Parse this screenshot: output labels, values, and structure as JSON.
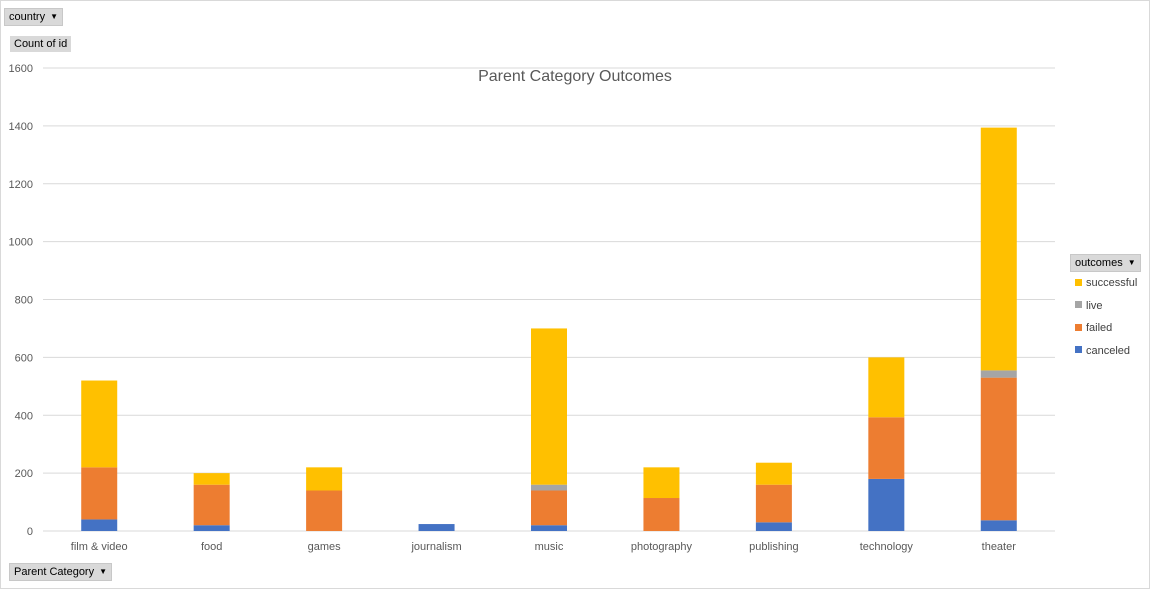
{
  "filters": {
    "country_label": "country",
    "count_label": "Count of id",
    "axis_field_label": "Parent Category",
    "legend_field_label": "outcomes"
  },
  "chart_data": {
    "type": "bar",
    "stacked": true,
    "title": "Parent Category Outcomes",
    "xlabel": "",
    "ylabel": "",
    "ylim": [
      0,
      1600
    ],
    "yticks": [
      0,
      200,
      400,
      600,
      800,
      1000,
      1200,
      1400,
      1600
    ],
    "grid": true,
    "legend_position": "right",
    "categories": [
      "film & video",
      "food",
      "games",
      "journalism",
      "music",
      "photography",
      "publishing",
      "technology",
      "theater"
    ],
    "series": [
      {
        "name": "canceled",
        "color": "#4472c4",
        "values": [
          40,
          20,
          0,
          24,
          20,
          0,
          30,
          180,
          37
        ]
      },
      {
        "name": "failed",
        "color": "#ed7d31",
        "values": [
          180,
          140,
          140,
          0,
          120,
          114,
          130,
          213,
          493
        ]
      },
      {
        "name": "live",
        "color": "#a5a5a5",
        "values": [
          0,
          0,
          0,
          0,
          20,
          0,
          0,
          0,
          25
        ]
      },
      {
        "name": "successful",
        "color": "#ffc000",
        "values": [
          300,
          40,
          80,
          0,
          540,
          106,
          76,
          207,
          839
        ]
      }
    ]
  }
}
